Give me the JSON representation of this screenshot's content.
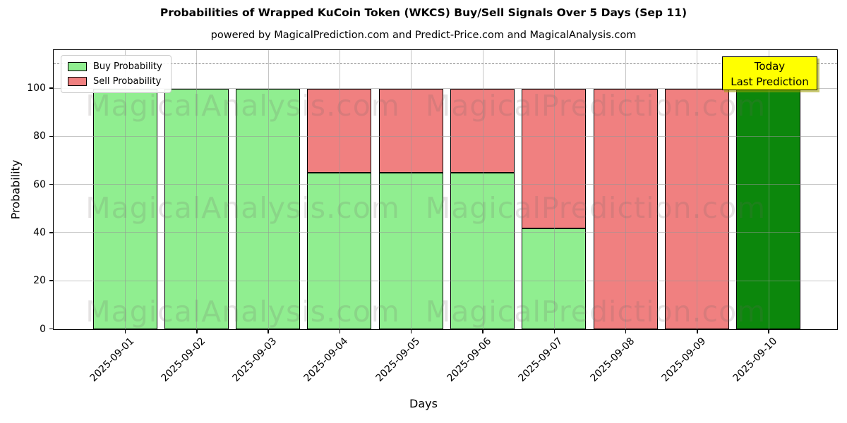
{
  "title": "Probabilities of Wrapped KuCoin Token (WKCS) Buy/Sell Signals Over 5 Days (Sep 11)",
  "subtitle": "powered by MagicalPrediction.com and Predict-Price.com and MagicalAnalysis.com",
  "axes": {
    "ylabel": "Probability",
    "xlabel": "Days",
    "yticks": [
      0,
      20,
      40,
      60,
      80,
      100
    ]
  },
  "legend": [
    {
      "label": "Buy Probability",
      "color": "#90EE90"
    },
    {
      "label": "Sell Probability",
      "color": "#F08080"
    }
  ],
  "annotation": {
    "line1": "Today",
    "line2": "Last Prediction",
    "bg_color": "#FFFF00"
  },
  "watermarks": {
    "left_text": "MagicalAnalysis.com",
    "right_text": "MagicalPrediction.com",
    "rows": 3
  },
  "chart_data": {
    "type": "bar",
    "stacked": true,
    "title": "Probabilities of Wrapped KuCoin Token (WKCS) Buy/Sell Signals Over 5 Days (Sep 11)",
    "xlabel": "Days",
    "ylabel": "Probability",
    "categories": [
      "2025-09-01",
      "2025-09-02",
      "2025-09-03",
      "2025-09-04",
      "2025-09-05",
      "2025-09-06",
      "2025-09-07",
      "2025-09-08",
      "2025-09-09",
      "2025-09-10"
    ],
    "series": [
      {
        "name": "Buy Probability",
        "color": "#90EE90",
        "values": [
          100,
          100,
          100,
          65,
          65,
          65,
          42,
          0,
          0,
          100
        ]
      },
      {
        "name": "Sell Probability",
        "color": "#F08080",
        "values": [
          0,
          0,
          0,
          35,
          35,
          35,
          58,
          100,
          100,
          0
        ]
      }
    ],
    "today_bar": {
      "index": 9,
      "color": "#0c870c"
    },
    "dashed_line_y": 110,
    "ylim": [
      0,
      115.7
    ],
    "grid": true,
    "legend_position": "upper left",
    "bar_edge_color": "#000000",
    "grid_color": "#b0b0b0",
    "dashed_line_color": "#7f7f7f"
  }
}
